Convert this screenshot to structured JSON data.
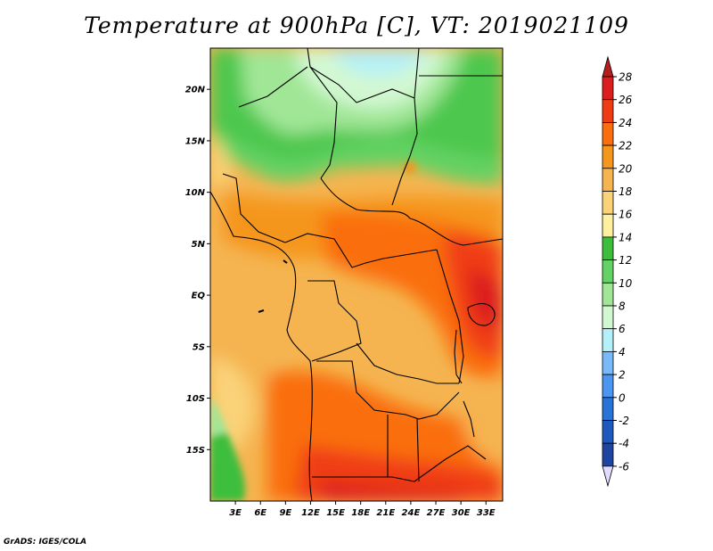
{
  "title": "Temperature at 900hPa [C], VT: 2019021109",
  "credit": "GrADS: IGES/COLA",
  "map": {
    "lon_range": [
      0,
      35
    ],
    "lat_range": [
      -20,
      24
    ],
    "lat_ticks": [
      {
        "value": 20,
        "label": "20N"
      },
      {
        "value": 15,
        "label": "15N"
      },
      {
        "value": 10,
        "label": "10N"
      },
      {
        "value": 5,
        "label": "5N"
      },
      {
        "value": 0,
        "label": "EQ"
      },
      {
        "value": -5,
        "label": "5S"
      },
      {
        "value": -10,
        "label": "10S"
      },
      {
        "value": -15,
        "label": "15S"
      }
    ],
    "lon_ticks": [
      {
        "value": 3,
        "label": "3E"
      },
      {
        "value": 6,
        "label": "6E"
      },
      {
        "value": 9,
        "label": "9E"
      },
      {
        "value": 12,
        "label": "12E"
      },
      {
        "value": 15,
        "label": "15E"
      },
      {
        "value": 18,
        "label": "18E"
      },
      {
        "value": 21,
        "label": "21E"
      },
      {
        "value": 24,
        "label": "24E"
      },
      {
        "value": 27,
        "label": "27E"
      },
      {
        "value": 30,
        "label": "30E"
      },
      {
        "value": 33,
        "label": "33E"
      }
    ]
  },
  "colorbar": {
    "levels": [
      {
        "label": "28",
        "color": "#dc1e1e"
      },
      {
        "label": "26",
        "color": "#f03c14"
      },
      {
        "label": "24",
        "color": "#fa6e0f"
      },
      {
        "label": "22",
        "color": "#f5961e"
      },
      {
        "label": "20",
        "color": "#f5b450"
      },
      {
        "label": "18",
        "color": "#fad278"
      },
      {
        "label": "16",
        "color": "#fff0a0"
      },
      {
        "label": "14",
        "color": "#3cbe3c"
      },
      {
        "label": "12",
        "color": "#64d264"
      },
      {
        "label": "10",
        "color": "#a0e696"
      },
      {
        "label": "8",
        "color": "#d2f8d2"
      },
      {
        "label": "6",
        "color": "#b4f0fa"
      },
      {
        "label": "4",
        "color": "#78b9fa"
      },
      {
        "label": "2",
        "color": "#4b96f0"
      },
      {
        "label": "0",
        "color": "#2873d7"
      },
      {
        "label": "-2",
        "color": "#1e5abe"
      },
      {
        "label": "-4",
        "color": "#1e46a0"
      },
      {
        "label": "-6",
        "color": "#1e288c"
      }
    ],
    "top_color": "#b41e1e",
    "bottom_color": "#e1dcff"
  }
}
